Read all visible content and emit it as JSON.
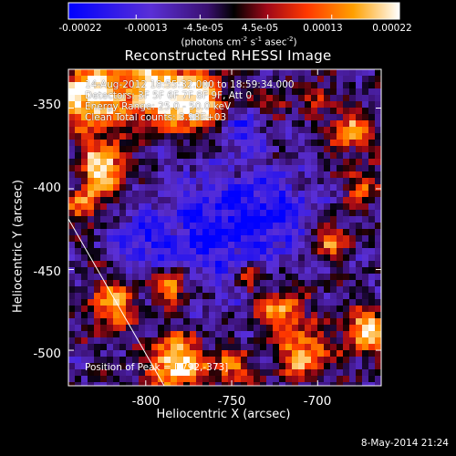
{
  "colorbar": {
    "ticks": [
      "-0.00022",
      "-0.00013",
      "-4.5e-05",
      "4.5e-05",
      "0.00013",
      "0.00022"
    ],
    "tick_values": [
      -0.00022,
      -0.00013,
      -4.5e-05,
      4.5e-05,
      0.00013,
      0.00022
    ],
    "range": [
      -0.00022,
      0.00022
    ]
  },
  "unit_prefix": "(photons cm",
  "unit_exp1": "-2",
  "unit_mid": " s",
  "unit_exp2": "-1",
  "unit_mid2": " asec",
  "unit_exp3": "-2",
  "unit_suffix": ")",
  "title": "Reconstructed RHESSI Image",
  "info": {
    "line1": "14-Aug-2012 18:55:32.000 to 18:59:34.000",
    "line2": "Detectors: 3F 5F 6F 7F 8F 9F, Att 0",
    "line3": "Energy Range: 25.0 - 50.0 keV",
    "line4": "Clean    Total counts: 3.98E+03"
  },
  "peak_label": "Position of Peak = [-792,-373]",
  "axes": {
    "xlabel": "Heliocentric X (arcsec)",
    "ylabel": "Heliocentric Y (arcsec)",
    "xticks": [
      "-800",
      "-750",
      "-700"
    ],
    "xtick_values": [
      -800,
      -750,
      -700
    ],
    "yticks": [
      "-350",
      "-400",
      "-450",
      "-500"
    ],
    "ytick_values": [
      -350,
      -400,
      -450,
      -500
    ],
    "xlim": [
      -845,
      -663
    ],
    "ylim": [
      -522,
      -326
    ]
  },
  "timestamp": "8-May-2014 21:24",
  "colors": {
    "background": "#000000",
    "colormap": [
      "#0000ff",
      "#6a2fd0",
      "#4a1a8a",
      "#000000",
      "#c0101a",
      "#ff5a00",
      "#ffa800",
      "#ffffff"
    ]
  }
}
